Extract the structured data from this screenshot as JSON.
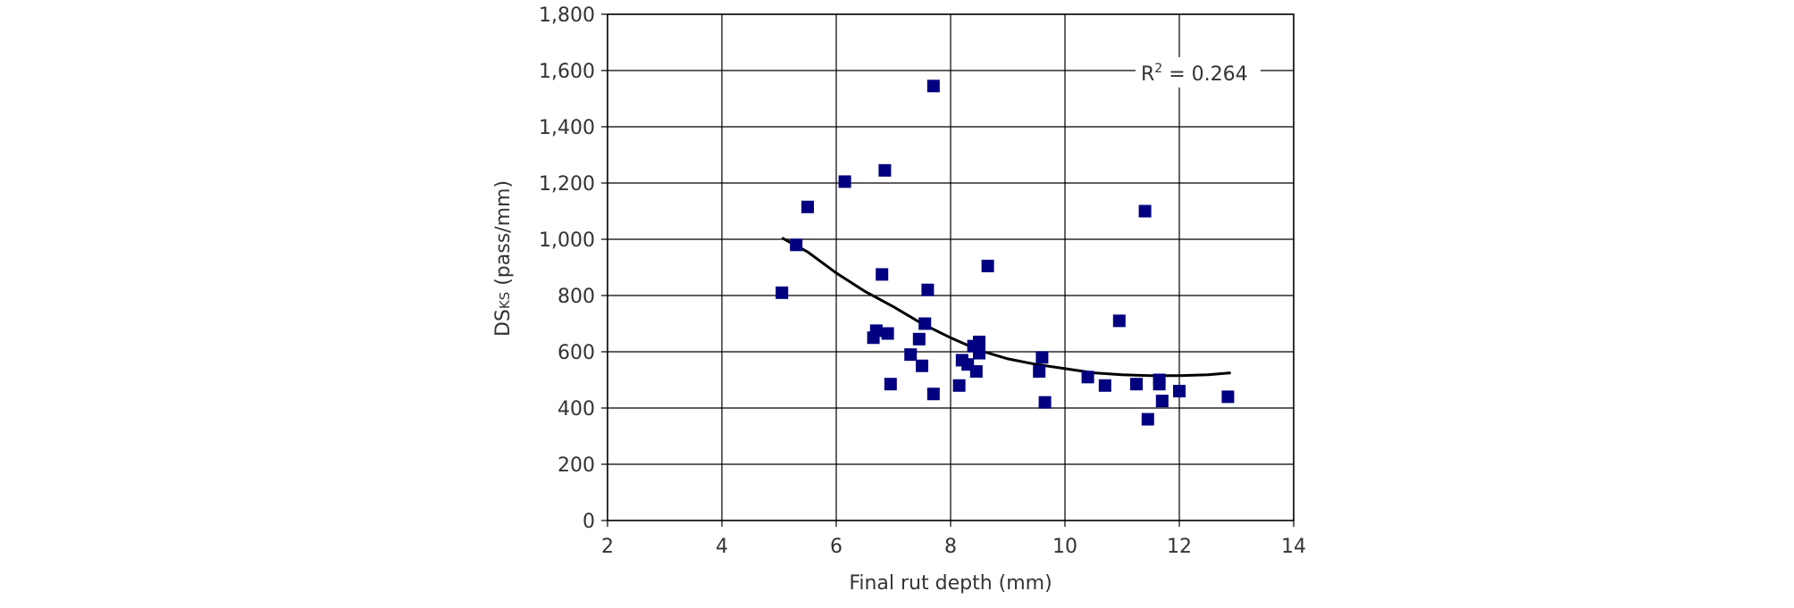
{
  "chart_data": {
    "type": "scatter",
    "xlabel": "Final rut depth (mm)",
    "ylabel": {
      "prefix": "DS",
      "subscript": "KS",
      "suffix": " (pass/mm)"
    },
    "xlim": [
      2,
      14
    ],
    "ylim": [
      0,
      1800
    ],
    "x_ticks": [
      2,
      4,
      6,
      8,
      10,
      12,
      14
    ],
    "y_ticks": [
      0,
      200,
      400,
      600,
      800,
      1000,
      1200,
      1400,
      1600,
      1800
    ],
    "y_tick_labels": [
      "0",
      "200",
      "400",
      "600",
      "800",
      "1,000",
      "1,200",
      "1,400",
      "1,600",
      "1,800"
    ],
    "grid": true,
    "legend": "none",
    "marker_color": "#000080",
    "trend_color": "#000000",
    "annotation": {
      "prefix": "R",
      "superscript": "2",
      "suffix": " = 0.264"
    },
    "points": [
      [
        5.05,
        810
      ],
      [
        5.3,
        980
      ],
      [
        5.5,
        1115
      ],
      [
        6.15,
        1205
      ],
      [
        6.65,
        650
      ],
      [
        6.7,
        675
      ],
      [
        6.8,
        875
      ],
      [
        6.85,
        1245
      ],
      [
        6.9,
        665
      ],
      [
        6.95,
        485
      ],
      [
        7.3,
        590
      ],
      [
        7.45,
        645
      ],
      [
        7.5,
        550
      ],
      [
        7.55,
        700
      ],
      [
        7.6,
        820
      ],
      [
        7.7,
        450
      ],
      [
        7.7,
        1545
      ],
      [
        8.15,
        480
      ],
      [
        8.2,
        570
      ],
      [
        8.3,
        555
      ],
      [
        8.4,
        620
      ],
      [
        8.45,
        530
      ],
      [
        8.5,
        635
      ],
      [
        8.5,
        595
      ],
      [
        8.65,
        905
      ],
      [
        9.55,
        530
      ],
      [
        9.6,
        580
      ],
      [
        9.65,
        420
      ],
      [
        10.4,
        510
      ],
      [
        10.7,
        480
      ],
      [
        10.95,
        710
      ],
      [
        11.25,
        485
      ],
      [
        11.4,
        1100
      ],
      [
        11.45,
        360
      ],
      [
        11.65,
        500
      ],
      [
        11.65,
        485
      ],
      [
        11.7,
        425
      ],
      [
        12.0,
        460
      ],
      [
        12.85,
        440
      ]
    ],
    "trendline": [
      [
        5.05,
        1005
      ],
      [
        5.5,
        955
      ],
      [
        6.0,
        880
      ],
      [
        6.5,
        815
      ],
      [
        7.0,
        760
      ],
      [
        7.5,
        700
      ],
      [
        8.0,
        650
      ],
      [
        8.5,
        605
      ],
      [
        9.0,
        575
      ],
      [
        9.5,
        555
      ],
      [
        10.0,
        540
      ],
      [
        10.5,
        525
      ],
      [
        11.0,
        518
      ],
      [
        11.5,
        515
      ],
      [
        12.0,
        515
      ],
      [
        12.5,
        518
      ],
      [
        12.9,
        525
      ]
    ]
  }
}
